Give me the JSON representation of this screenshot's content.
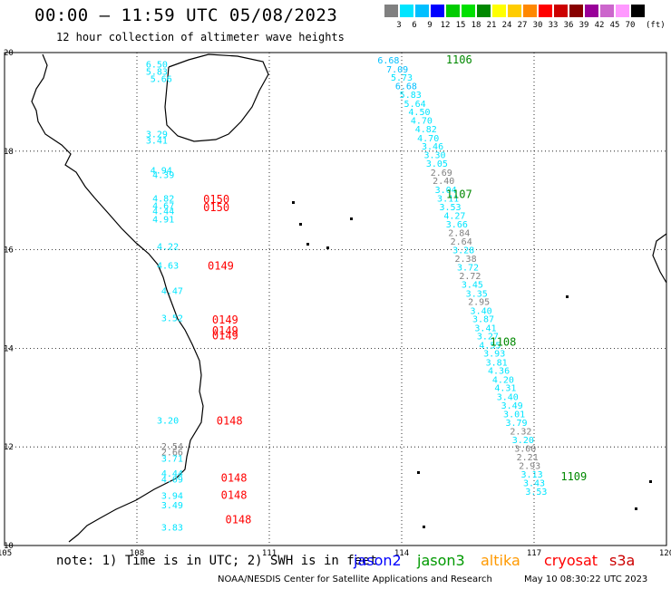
{
  "header": {
    "title": "00:00 – 11:59 UTC 05/08/2023",
    "subtitle": "12 hour collection of altimeter wave heights"
  },
  "legend": {
    "unit": "(ft)",
    "bins": [
      {
        "label": "3",
        "color": "#808080"
      },
      {
        "label": "6",
        "color": "#00e5ff"
      },
      {
        "label": "9",
        "color": "#00bfff"
      },
      {
        "label": "12",
        "color": "#0000ff"
      },
      {
        "label": "15",
        "color": "#00cc00"
      },
      {
        "label": "18",
        "color": "#00e000"
      },
      {
        "label": "21",
        "color": "#008800"
      },
      {
        "label": "24",
        "color": "#ffff00"
      },
      {
        "label": "27",
        "color": "#ffcc00"
      },
      {
        "label": "30",
        "color": "#ff8800"
      },
      {
        "label": "33",
        "color": "#ff0000"
      },
      {
        "label": "36",
        "color": "#cc0000"
      },
      {
        "label": "39",
        "color": "#880000"
      },
      {
        "label": "42",
        "color": "#990099"
      },
      {
        "label": "45",
        "color": "#cc66cc"
      },
      {
        "label": "70",
        "color": "#ff99ff"
      },
      {
        "label": "",
        "color": "#000000"
      }
    ]
  },
  "map": {
    "lon_range": [
      105,
      120
    ],
    "lat_range": [
      10,
      20
    ],
    "lon_ticks": [
      "105",
      "108",
      "111",
      "114",
      "117",
      "120"
    ],
    "lat_ticks": [
      "20",
      "18",
      "16",
      "14",
      "12",
      "10"
    ],
    "pass_labels": [
      {
        "text": "1106",
        "lon": 115.3,
        "lat": 19.78,
        "color": "#008800"
      },
      {
        "text": "1107",
        "lon": 115.3,
        "lat": 17.05,
        "color": "#008800"
      },
      {
        "text": "1108",
        "lon": 116.3,
        "lat": 14.05,
        "color": "#008800"
      },
      {
        "text": "1109",
        "lon": 117.9,
        "lat": 11.32,
        "color": "#008800"
      },
      {
        "text": "0150",
        "lon": 109.8,
        "lat": 16.95,
        "color": "#ff0000"
      },
      {
        "text": "0150",
        "lon": 109.8,
        "lat": 16.78,
        "color": "#ff0000"
      },
      {
        "text": "0149",
        "lon": 109.9,
        "lat": 15.6,
        "color": "#ff0000"
      },
      {
        "text": "0149",
        "lon": 110.0,
        "lat": 14.5,
        "color": "#ff0000"
      },
      {
        "text": "0149",
        "lon": 110.0,
        "lat": 14.28,
        "color": "#ff0000"
      },
      {
        "text": "0149",
        "lon": 110.0,
        "lat": 14.18,
        "color": "#ff0000"
      },
      {
        "text": "0148",
        "lon": 110.1,
        "lat": 12.45,
        "color": "#ff0000"
      },
      {
        "text": "0148",
        "lon": 110.2,
        "lat": 11.3,
        "color": "#ff0000"
      },
      {
        "text": "0148",
        "lon": 110.2,
        "lat": 10.95,
        "color": "#ff0000"
      },
      {
        "text": "0148",
        "lon": 110.3,
        "lat": 10.45,
        "color": "#ff0000"
      }
    ],
    "wave_heights": [
      {
        "text": "6.68",
        "lon": 113.7,
        "lat": 19.78,
        "color": "#00bfff"
      },
      {
        "text": "7.09",
        "lon": 113.9,
        "lat": 19.6,
        "color": "#00bfff"
      },
      {
        "text": "5.73",
        "lon": 114.0,
        "lat": 19.43,
        "color": "#00e5ff"
      },
      {
        "text": "6.68",
        "lon": 114.1,
        "lat": 19.26,
        "color": "#00bfff"
      },
      {
        "text": "5.83",
        "lon": 114.2,
        "lat": 19.08,
        "color": "#00e5ff"
      },
      {
        "text": "5.64",
        "lon": 114.3,
        "lat": 18.9,
        "color": "#00e5ff"
      },
      {
        "text": "4.50",
        "lon": 114.4,
        "lat": 18.73,
        "color": "#00e5ff"
      },
      {
        "text": "4.70",
        "lon": 114.45,
        "lat": 18.56,
        "color": "#00e5ff"
      },
      {
        "text": "4.82",
        "lon": 114.55,
        "lat": 18.38,
        "color": "#00e5ff"
      },
      {
        "text": "4.70",
        "lon": 114.6,
        "lat": 18.2,
        "color": "#00e5ff"
      },
      {
        "text": "3.46",
        "lon": 114.7,
        "lat": 18.03,
        "color": "#00e5ff"
      },
      {
        "text": "3.30",
        "lon": 114.75,
        "lat": 17.86,
        "color": "#00e5ff"
      },
      {
        "text": "3.05",
        "lon": 114.8,
        "lat": 17.68,
        "color": "#00e5ff"
      },
      {
        "text": "2.69",
        "lon": 114.9,
        "lat": 17.5,
        "color": "#808080"
      },
      {
        "text": "2.40",
        "lon": 114.95,
        "lat": 17.33,
        "color": "#808080"
      },
      {
        "text": "3.04",
        "lon": 115.0,
        "lat": 17.15,
        "color": "#00e5ff"
      },
      {
        "text": "3.11",
        "lon": 115.05,
        "lat": 16.98,
        "color": "#00e5ff"
      },
      {
        "text": "3.53",
        "lon": 115.1,
        "lat": 16.8,
        "color": "#00e5ff"
      },
      {
        "text": "4.27",
        "lon": 115.2,
        "lat": 16.63,
        "color": "#00e5ff"
      },
      {
        "text": "3.66",
        "lon": 115.25,
        "lat": 16.45,
        "color": "#00e5ff"
      },
      {
        "text": "2.84",
        "lon": 115.3,
        "lat": 16.28,
        "color": "#808080"
      },
      {
        "text": "2.64",
        "lon": 115.35,
        "lat": 16.1,
        "color": "#808080"
      },
      {
        "text": "3.28",
        "lon": 115.4,
        "lat": 15.93,
        "color": "#00e5ff"
      },
      {
        "text": "2.38",
        "lon": 115.45,
        "lat": 15.75,
        "color": "#808080"
      },
      {
        "text": "3.72",
        "lon": 115.5,
        "lat": 15.58,
        "color": "#00e5ff"
      },
      {
        "text": "2.72",
        "lon": 115.55,
        "lat": 15.4,
        "color": "#808080"
      },
      {
        "text": "3.45",
        "lon": 115.6,
        "lat": 15.23,
        "color": "#00e5ff"
      },
      {
        "text": "3.35",
        "lon": 115.7,
        "lat": 15.05,
        "color": "#00e5ff"
      },
      {
        "text": "2.95",
        "lon": 115.75,
        "lat": 14.88,
        "color": "#808080"
      },
      {
        "text": "3.40",
        "lon": 115.8,
        "lat": 14.7,
        "color": "#00e5ff"
      },
      {
        "text": "3.87",
        "lon": 115.85,
        "lat": 14.53,
        "color": "#00e5ff"
      },
      {
        "text": "3.41",
        "lon": 115.9,
        "lat": 14.35,
        "color": "#00e5ff"
      },
      {
        "text": "3.27",
        "lon": 115.95,
        "lat": 14.18,
        "color": "#00e5ff"
      },
      {
        "text": "4.55",
        "lon": 116.0,
        "lat": 14.0,
        "color": "#00e5ff"
      },
      {
        "text": "3.93",
        "lon": 116.1,
        "lat": 13.83,
        "color": "#00e5ff"
      },
      {
        "text": "3.81",
        "lon": 116.15,
        "lat": 13.65,
        "color": "#00e5ff"
      },
      {
        "text": "4.36",
        "lon": 116.2,
        "lat": 13.48,
        "color": "#00e5ff"
      },
      {
        "text": "4.20",
        "lon": 116.3,
        "lat": 13.3,
        "color": "#00e5ff"
      },
      {
        "text": "4.31",
        "lon": 116.35,
        "lat": 13.13,
        "color": "#00e5ff"
      },
      {
        "text": "3.40",
        "lon": 116.4,
        "lat": 12.95,
        "color": "#00e5ff"
      },
      {
        "text": "3.49",
        "lon": 116.5,
        "lat": 12.78,
        "color": "#00e5ff"
      },
      {
        "text": "3.01",
        "lon": 116.55,
        "lat": 12.6,
        "color": "#00e5ff"
      },
      {
        "text": "3.79",
        "lon": 116.6,
        "lat": 12.43,
        "color": "#00e5ff"
      },
      {
        "text": "2.32",
        "lon": 116.7,
        "lat": 12.25,
        "color": "#808080"
      },
      {
        "text": "3.20",
        "lon": 116.75,
        "lat": 12.08,
        "color": "#00e5ff"
      },
      {
        "text": "3.00",
        "lon": 116.8,
        "lat": 11.9,
        "color": "#808080"
      },
      {
        "text": "2.21",
        "lon": 116.85,
        "lat": 11.73,
        "color": "#808080"
      },
      {
        "text": "2.93",
        "lon": 116.9,
        "lat": 11.55,
        "color": "#808080"
      },
      {
        "text": "3.13",
        "lon": 116.95,
        "lat": 11.38,
        "color": "#00e5ff"
      },
      {
        "text": "3.43",
        "lon": 117.0,
        "lat": 11.2,
        "color": "#00e5ff"
      },
      {
        "text": "3.53",
        "lon": 117.05,
        "lat": 11.03,
        "color": "#00e5ff"
      },
      {
        "text": "6.50",
        "lon": 108.45,
        "lat": 19.7,
        "color": "#00e5ff"
      },
      {
        "text": "5.83",
        "lon": 108.45,
        "lat": 19.55,
        "color": "#00e5ff"
      },
      {
        "text": "5.66",
        "lon": 108.55,
        "lat": 19.4,
        "color": "#00e5ff"
      },
      {
        "text": "3.29",
        "lon": 108.45,
        "lat": 18.28,
        "color": "#00e5ff"
      },
      {
        "text": "3.41",
        "lon": 108.45,
        "lat": 18.15,
        "color": "#00e5ff"
      },
      {
        "text": "4.94",
        "lon": 108.55,
        "lat": 17.55,
        "color": "#00e5ff"
      },
      {
        "text": "4.39",
        "lon": 108.6,
        "lat": 17.45,
        "color": "#00e5ff"
      },
      {
        "text": "4.82",
        "lon": 108.6,
        "lat": 16.98,
        "color": "#00e5ff"
      },
      {
        "text": "4.67",
        "lon": 108.6,
        "lat": 16.83,
        "color": "#00e5ff"
      },
      {
        "text": "4.44",
        "lon": 108.6,
        "lat": 16.72,
        "color": "#00e5ff"
      },
      {
        "text": "4.91",
        "lon": 108.6,
        "lat": 16.55,
        "color": "#00e5ff"
      },
      {
        "text": "4.22",
        "lon": 108.7,
        "lat": 16.0,
        "color": "#00e5ff"
      },
      {
        "text": "4.63",
        "lon": 108.7,
        "lat": 15.62,
        "color": "#00e5ff"
      },
      {
        "text": "4.47",
        "lon": 108.8,
        "lat": 15.1,
        "color": "#00e5ff"
      },
      {
        "text": "3.52",
        "lon": 108.8,
        "lat": 14.55,
        "color": "#00e5ff"
      },
      {
        "text": "3.20",
        "lon": 108.7,
        "lat": 12.47,
        "color": "#00e5ff"
      },
      {
        "text": "2.54",
        "lon": 108.8,
        "lat": 11.95,
        "color": "#808080"
      },
      {
        "text": "2.66",
        "lon": 108.8,
        "lat": 11.83,
        "color": "#808080"
      },
      {
        "text": "3.71",
        "lon": 108.8,
        "lat": 11.7,
        "color": "#00e5ff"
      },
      {
        "text": "4.44",
        "lon": 108.8,
        "lat": 11.4,
        "color": "#00e5ff"
      },
      {
        "text": "4.09",
        "lon": 108.8,
        "lat": 11.28,
        "color": "#00e5ff"
      },
      {
        "text": "3.94",
        "lon": 108.8,
        "lat": 10.95,
        "color": "#00e5ff"
      },
      {
        "text": "3.49",
        "lon": 108.8,
        "lat": 10.75,
        "color": "#00e5ff"
      },
      {
        "text": "3.83",
        "lon": 108.8,
        "lat": 10.3,
        "color": "#00e5ff"
      }
    ]
  },
  "notes": {
    "note": "note: 1) Time is in UTC; 2) SWH is in feet",
    "satellites": [
      {
        "name": "jason2",
        "color": "#0000ff"
      },
      {
        "name": "jason3",
        "color": "#009900"
      },
      {
        "name": "altika",
        "color": "#ff9900"
      },
      {
        "name": "cryosat",
        "color": "#ff0000"
      },
      {
        "name": "s3a",
        "color": "#cc0000"
      }
    ]
  },
  "footer": {
    "credit": "NOAA/NESDIS Center for Satellite Applications and Research",
    "timestamp": "May 10 08:30:22 UTC 2023"
  }
}
